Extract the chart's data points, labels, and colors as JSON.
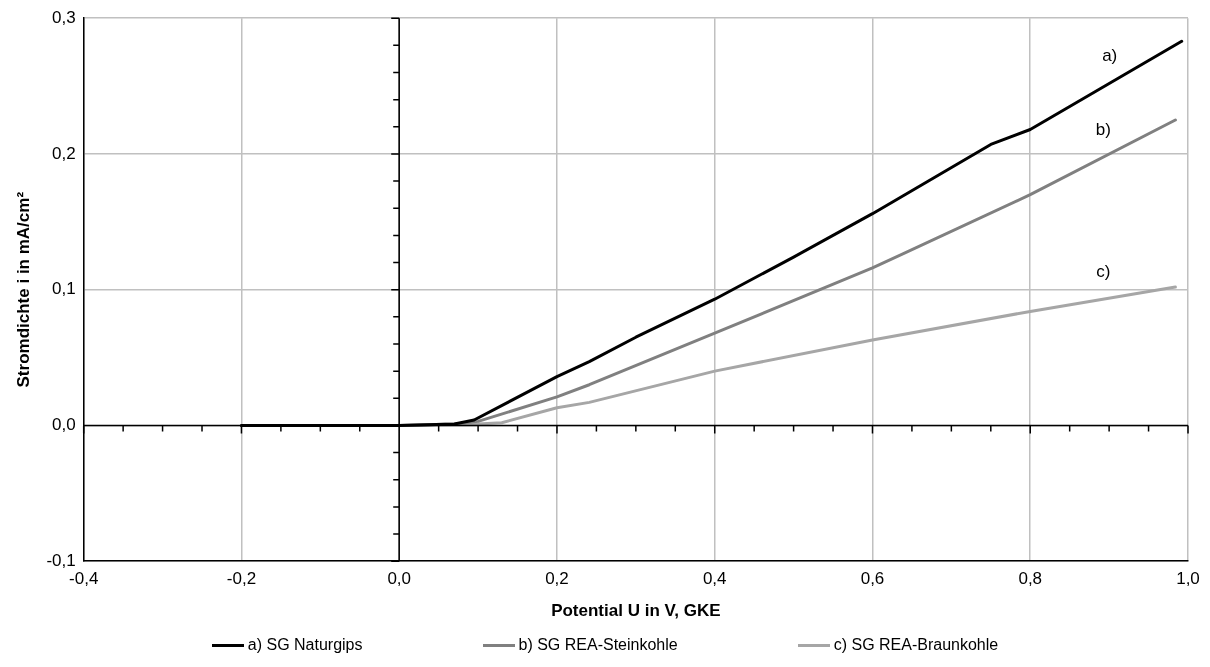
{
  "chart_data": {
    "type": "line",
    "xlabel": "Potential U in V, GKE",
    "ylabel": "Stromdichte i in mA/cm²",
    "series": [
      {
        "name": "a) SG Naturgips",
        "color": "#000000",
        "x": [
          -0.2,
          0,
          0.07,
          0.095,
          0.2,
          0.241,
          0.3,
          0.4,
          0.5,
          0.6,
          0.75,
          0.8,
          0.992
        ],
        "values": [
          0,
          0,
          0.001,
          0.004,
          0.036,
          0.047,
          0.065,
          0.093,
          0.124,
          0.156,
          0.207,
          0.218,
          0.283
        ]
      },
      {
        "name": "b) SG REA-Steinkohle",
        "color": "#808080",
        "x": [
          -0.2,
          0,
          0.07,
          0.1,
          0.2,
          0.241,
          0.4,
          0.6,
          0.8,
          0.984
        ],
        "values": [
          0,
          0,
          0.001,
          0.003,
          0.021,
          0.03,
          0.068,
          0.116,
          0.17,
          0.225
        ]
      },
      {
        "name": "c) SG REA-Braunkohle",
        "color": "#a6a6a6",
        "x": [
          -0.2,
          0,
          0.1,
          0.13,
          0.2,
          0.241,
          0.4,
          0.6,
          0.8,
          0.984
        ],
        "values": [
          0,
          0,
          0.001,
          0.002,
          0.013,
          0.017,
          0.04,
          0.063,
          0.084,
          0.102
        ]
      }
    ],
    "xlim": [
      -0.4,
      1.0
    ],
    "ylim": [
      -0.1,
      0.3
    ],
    "xticks": [
      {
        "value": -0.4,
        "label": "-0,4"
      },
      {
        "value": -0.35,
        "label": null
      },
      {
        "value": -0.3,
        "label": null
      },
      {
        "value": -0.25,
        "label": null
      },
      {
        "value": -0.2,
        "label": "-0,2"
      },
      {
        "value": -0.15,
        "label": null
      },
      {
        "value": -0.1,
        "label": null
      },
      {
        "value": -0.05,
        "label": null
      },
      {
        "value": 0,
        "label": "0,0"
      },
      {
        "value": 0.05,
        "label": null
      },
      {
        "value": 0.1,
        "label": null
      },
      {
        "value": 0.15,
        "label": null
      },
      {
        "value": 0.2,
        "label": "0,2"
      },
      {
        "value": 0.25,
        "label": null
      },
      {
        "value": 0.3,
        "label": null
      },
      {
        "value": 0.35,
        "label": null
      },
      {
        "value": 0.4,
        "label": "0,4"
      },
      {
        "value": 0.45,
        "label": null
      },
      {
        "value": 0.5,
        "label": null
      },
      {
        "value": 0.55,
        "label": null
      },
      {
        "value": 0.6,
        "label": "0,6"
      },
      {
        "value": 0.65,
        "label": null
      },
      {
        "value": 0.7,
        "label": null
      },
      {
        "value": 0.75,
        "label": null
      },
      {
        "value": 0.8,
        "label": "0,8"
      },
      {
        "value": 0.85,
        "label": null
      },
      {
        "value": 0.9,
        "label": null
      },
      {
        "value": 0.95,
        "label": null
      },
      {
        "value": 1.0,
        "label": "1,0"
      }
    ],
    "yticks": [
      {
        "value": -0.1,
        "label": "-0,1"
      },
      {
        "value": -0.08,
        "label": null
      },
      {
        "value": -0.06,
        "label": null
      },
      {
        "value": -0.04,
        "label": null
      },
      {
        "value": -0.02,
        "label": null
      },
      {
        "value": 0,
        "label": "0,0"
      },
      {
        "value": 0.02,
        "label": null
      },
      {
        "value": 0.04,
        "label": null
      },
      {
        "value": 0.06,
        "label": null
      },
      {
        "value": 0.08,
        "label": null
      },
      {
        "value": 0.1,
        "label": "0,1"
      },
      {
        "value": 0.12,
        "label": null
      },
      {
        "value": 0.14,
        "label": null
      },
      {
        "value": 0.16,
        "label": null
      },
      {
        "value": 0.18,
        "label": null
      },
      {
        "value": 0.2,
        "label": "0,2"
      },
      {
        "value": 0.22,
        "label": null
      },
      {
        "value": 0.24,
        "label": null
      },
      {
        "value": 0.26,
        "label": null
      },
      {
        "value": 0.28,
        "label": null
      },
      {
        "value": 0.3,
        "label": "0,3"
      }
    ],
    "annotations": [
      "a)",
      "b)",
      "c)"
    ],
    "grid": true,
    "legend": "bottom",
    "line_style": "solid",
    "marker": "none"
  }
}
